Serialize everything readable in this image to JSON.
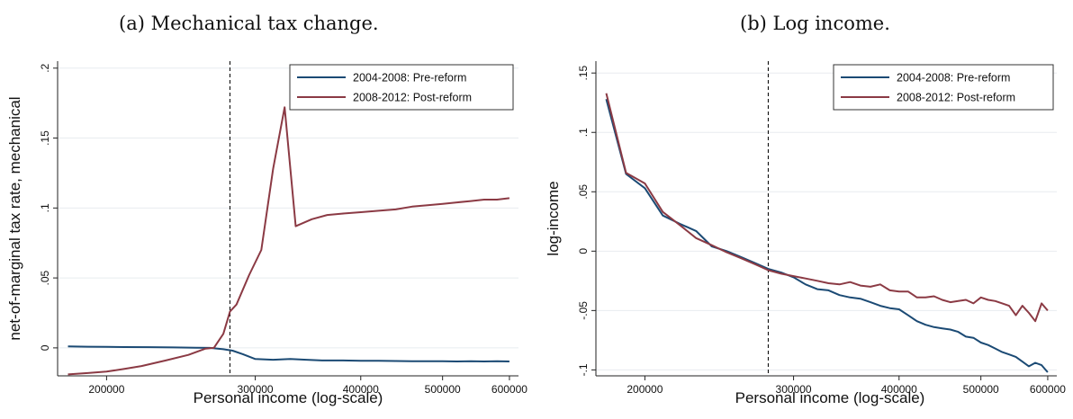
{
  "panels": [
    {
      "caption": "(a) Mechanical tax change.",
      "chart_data": {
        "type": "line",
        "xlabel": "Personal income (log-scale)",
        "ylabel": "net-of-marginal tax rate, mechanical",
        "x_scale": "log",
        "xlim": [
          175000,
          615000
        ],
        "ylim": [
          -0.02,
          0.205
        ],
        "xticks": [
          200000,
          300000,
          400000,
          500000,
          600000
        ],
        "xtick_labels": [
          "200000",
          "300000",
          "400000",
          "500000",
          "600000"
        ],
        "yticks": [
          0,
          0.05,
          0.1,
          0.15,
          0.2
        ],
        "ytick_labels": [
          "0",
          ".05",
          ".1",
          ".15",
          ".2"
        ],
        "vline_x": 280000,
        "grid": "horizontal",
        "legend_position": "top-right",
        "series": [
          {
            "name": "2004-2008: Pre-reform",
            "color": "#1b4a74",
            "x": [
              180000,
              190000,
              200000,
              210000,
              225000,
              240000,
              255000,
              265000,
              275000,
              282000,
              290000,
              300000,
              315000,
              330000,
              345000,
              360000,
              380000,
              400000,
              420000,
              440000,
              460000,
              480000,
              500000,
              520000,
              540000,
              560000,
              580000,
              600000
            ],
            "values": [
              0.001,
              0.0008,
              0.0007,
              0.0006,
              0.0005,
              0.0003,
              0.0001,
              0.0,
              -0.001,
              -0.002,
              -0.0045,
              -0.008,
              -0.0085,
              -0.008,
              -0.0085,
              -0.009,
              -0.009,
              -0.0092,
              -0.0092,
              -0.0094,
              -0.0095,
              -0.0096,
              -0.0096,
              -0.0097,
              -0.0096,
              -0.0097,
              -0.0096,
              -0.0097
            ]
          },
          {
            "name": "2008-2012: Post-reform",
            "color": "#8b3a44",
            "x": [
              180000,
              190000,
              200000,
              210000,
              220000,
              235000,
              250000,
              262000,
              268000,
              275000,
              280000,
              285000,
              295000,
              305000,
              315000,
              325000,
              335000,
              350000,
              365000,
              380000,
              400000,
              420000,
              440000,
              460000,
              480000,
              500000,
              520000,
              540000,
              560000,
              580000,
              600000
            ],
            "values": [
              -0.019,
              -0.018,
              -0.017,
              -0.015,
              -0.013,
              -0.009,
              -0.005,
              -0.0005,
              0.0,
              0.01,
              0.026,
              0.031,
              0.052,
              0.07,
              0.128,
              0.172,
              0.087,
              0.092,
              0.095,
              0.096,
              0.097,
              0.098,
              0.099,
              0.101,
              0.102,
              0.103,
              0.104,
              0.105,
              0.106,
              0.106,
              0.107
            ]
          }
        ]
      }
    },
    {
      "caption": "(b) Log income.",
      "chart_data": {
        "type": "line",
        "xlabel": "Personal income (log-scale)",
        "ylabel": "log-income",
        "x_scale": "log",
        "xlim": [
          175000,
          615000
        ],
        "ylim": [
          -0.105,
          0.16
        ],
        "xticks": [
          200000,
          300000,
          400000,
          500000,
          600000
        ],
        "xtick_labels": [
          "200000",
          "300000",
          "400000",
          "500000",
          "600000"
        ],
        "yticks": [
          -0.1,
          -0.05,
          0,
          0.05,
          0.1,
          0.15
        ],
        "ytick_labels": [
          "-.1",
          "-.05",
          "0",
          ".05",
          ".1",
          ".15"
        ],
        "vline_x": 280000,
        "grid": "horizontal",
        "legend_position": "top-right",
        "series": [
          {
            "name": "2004-2008: Pre-reform",
            "color": "#1b4a74",
            "x": [
              180000,
              190000,
              200000,
              210000,
              220000,
              230000,
              240000,
              250000,
              260000,
              270000,
              280000,
              290000,
              300000,
              310000,
              320000,
              330000,
              340000,
              350000,
              360000,
              370000,
              380000,
              390000,
              400000,
              410000,
              420000,
              430000,
              440000,
              450000,
              460000,
              470000,
              480000,
              490000,
              500000,
              510000,
              520000,
              530000,
              540000,
              550000,
              560000,
              570000,
              580000,
              590000,
              600000
            ],
            "values": [
              0.128,
              0.065,
              0.053,
              0.03,
              0.023,
              0.017,
              0.004,
              0.0,
              -0.005,
              -0.01,
              -0.015,
              -0.018,
              -0.022,
              -0.028,
              -0.032,
              -0.033,
              -0.037,
              -0.039,
              -0.04,
              -0.043,
              -0.046,
              -0.048,
              -0.049,
              -0.054,
              -0.059,
              -0.062,
              -0.064,
              -0.065,
              -0.066,
              -0.068,
              -0.072,
              -0.073,
              -0.077,
              -0.079,
              -0.082,
              -0.085,
              -0.087,
              -0.089,
              -0.093,
              -0.097,
              -0.094,
              -0.096,
              -0.102
            ]
          },
          {
            "name": "2008-2012: Post-reform",
            "color": "#8b3a44",
            "x": [
              180000,
              190000,
              200000,
              210000,
              220000,
              230000,
              240000,
              250000,
              260000,
              270000,
              280000,
              290000,
              300000,
              310000,
              320000,
              330000,
              340000,
              350000,
              360000,
              370000,
              380000,
              390000,
              400000,
              410000,
              420000,
              430000,
              440000,
              450000,
              460000,
              470000,
              480000,
              490000,
              500000,
              510000,
              520000,
              530000,
              540000,
              550000,
              560000,
              570000,
              580000,
              590000,
              600000
            ],
            "values": [
              0.133,
              0.066,
              0.057,
              0.033,
              0.022,
              0.011,
              0.005,
              -0.001,
              -0.006,
              -0.011,
              -0.016,
              -0.019,
              -0.021,
              -0.023,
              -0.025,
              -0.027,
              -0.028,
              -0.026,
              -0.029,
              -0.03,
              -0.028,
              -0.033,
              -0.034,
              -0.034,
              -0.039,
              -0.039,
              -0.038,
              -0.041,
              -0.043,
              -0.042,
              -0.041,
              -0.044,
              -0.039,
              -0.041,
              -0.042,
              -0.044,
              -0.046,
              -0.054,
              -0.046,
              -0.052,
              -0.059,
              -0.044,
              -0.05
            ]
          }
        ]
      }
    }
  ]
}
